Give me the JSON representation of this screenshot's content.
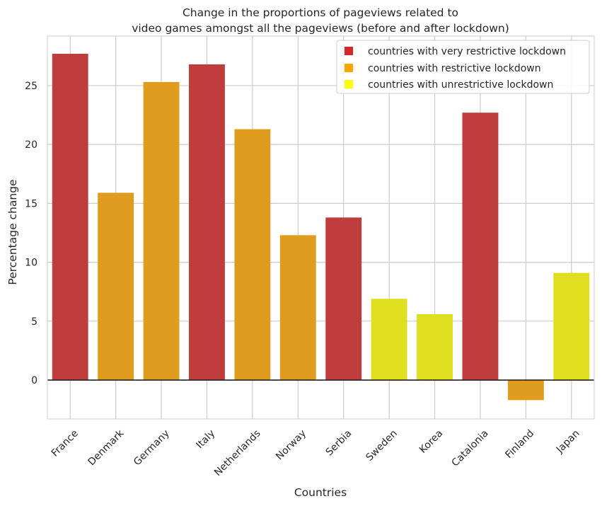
{
  "chart_data": {
    "type": "bar",
    "title_lines": [
      "Change in the proportions of pageviews related to",
      "video games amongst all the pageviews (before and after lockdown)"
    ],
    "xlabel": "Countries",
    "ylabel": "Percentage change",
    "categories": [
      "France",
      "Denmark",
      "Germany",
      "Italy",
      "Netherlands",
      "Norway",
      "Serbia",
      "Sweden",
      "Korea",
      "Catalonia",
      "Finland",
      "Japan"
    ],
    "values": [
      27.7,
      15.9,
      25.3,
      26.8,
      21.3,
      12.3,
      13.8,
      6.9,
      5.6,
      22.7,
      -1.7,
      9.1
    ],
    "groups": [
      "very",
      "restrictive",
      "restrictive",
      "very",
      "restrictive",
      "restrictive",
      "very",
      "unrestrictive",
      "unrestrictive",
      "very",
      "restrictive",
      "unrestrictive"
    ],
    "ylim": [
      -3.3,
      29.2
    ],
    "yticks": [
      0,
      5,
      10,
      15,
      20,
      25
    ],
    "grid": true,
    "legend_position": "top-right",
    "legend": [
      {
        "key": "very",
        "label": "countries with very restrictive lockdown"
      },
      {
        "key": "restrictive",
        "label": "countries with restrictive lockdown"
      },
      {
        "key": "unrestrictive",
        "label": "countries with unrestrictive lockdown"
      }
    ],
    "colors": {
      "very": "#c03d3e",
      "restrictive": "#e09c1f",
      "unrestrictive": "#dfdf1f",
      "legend_very": "#d62728",
      "legend_restrictive": "#ffa500",
      "legend_unrestrictive": "#ffff00",
      "grid": "#cccccc",
      "zero_line": "#222222"
    }
  }
}
